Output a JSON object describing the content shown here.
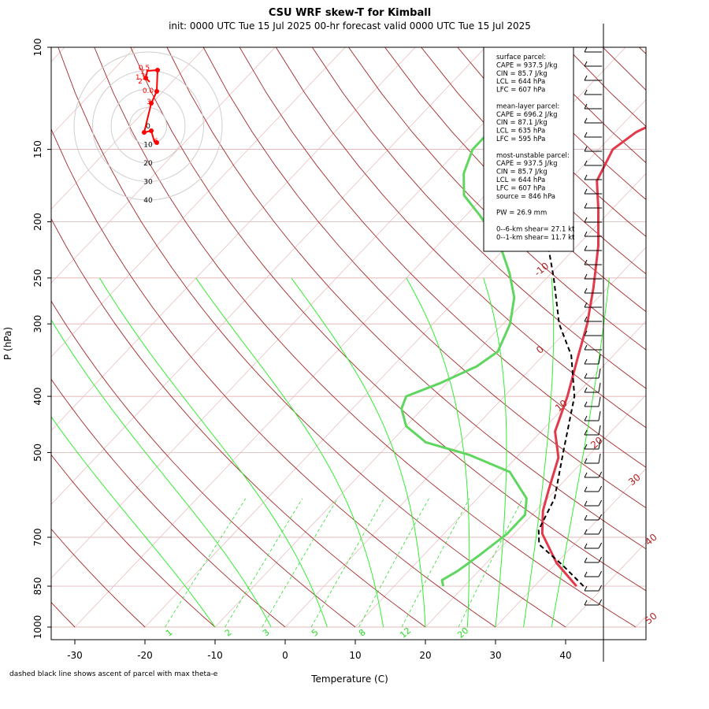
{
  "title": "CSU WRF skew-T for Kimball",
  "subtitle": "init: 0000 UTC Tue 15 Jul 2025     00-hr forecast valid 0000 UTC Tue 15 Jul 2025",
  "footnote": "dashed black line shows ascent of parcel with max theta-e",
  "colors": {
    "temperature": "#e23a4a",
    "dewpoint": "#5fd65f",
    "parcel": "#000000",
    "isotherm": "#b22222",
    "dry_adiabat": "#a52a2a",
    "moist_adiabat": "#33ee33",
    "mixing_ratio": "#33dd33",
    "hodograph": "#ff0000"
  },
  "chart_data": {
    "type": "line",
    "xlabel": "Temperature (C)",
    "ylabel": "P (hPa)",
    "x_ticks": [
      "-30",
      "-20",
      "-10",
      "0",
      "10",
      "20",
      "30",
      "40"
    ],
    "y_ticks": [
      "100",
      "150",
      "200",
      "250",
      "300",
      "400",
      "500",
      "700",
      "850",
      "1000"
    ],
    "isotherm_labels": [
      "-10",
      "0",
      "10",
      "20",
      "30",
      "40",
      "50"
    ],
    "mixing_ratio_labels": [
      "1",
      "2",
      "3",
      "5",
      "8",
      "12",
      "20"
    ],
    "series": [
      {
        "name": "Temperature",
        "points": [
          [
            36,
            850
          ],
          [
            30,
            775
          ],
          [
            24,
            690
          ],
          [
            21,
            630
          ],
          [
            19,
            580
          ],
          [
            16,
            510
          ],
          [
            12,
            460
          ],
          [
            9,
            400
          ],
          [
            5,
            340
          ],
          [
            2,
            300
          ],
          [
            -2,
            260
          ],
          [
            -7,
            220
          ],
          [
            -12,
            190
          ],
          [
            -16,
            170
          ],
          [
            -18,
            150
          ],
          [
            -17,
            140
          ],
          [
            -14,
            130
          ],
          [
            -8,
            120
          ],
          [
            0,
            110
          ],
          [
            3,
            107
          ]
        ]
      },
      {
        "name": "Dewpoint",
        "points": [
          [
            17,
            850
          ],
          [
            16,
            830
          ],
          [
            17,
            800
          ],
          [
            18,
            750
          ],
          [
            19,
            690
          ],
          [
            19,
            640
          ],
          [
            17,
            600
          ],
          [
            11,
            540
          ],
          [
            3,
            505
          ],
          [
            -5,
            480
          ],
          [
            -10,
            450
          ],
          [
            -13,
            420
          ],
          [
            -14,
            400
          ],
          [
            -11,
            380
          ],
          [
            -8,
            355
          ],
          [
            -7,
            335
          ],
          [
            -9,
            300
          ],
          [
            -12,
            270
          ],
          [
            -16,
            245
          ],
          [
            -21,
            220
          ],
          [
            -28,
            195
          ],
          [
            -33,
            180
          ],
          [
            -36,
            165
          ],
          [
            -38,
            150
          ],
          [
            -38,
            135
          ],
          [
            -39,
            120
          ],
          [
            -41,
            110
          ],
          [
            -42,
            105
          ]
        ]
      },
      {
        "name": "Parcel (max theta-e)",
        "points": [
          [
            37,
            850
          ],
          [
            31,
            780
          ],
          [
            25,
            720
          ],
          [
            23,
            680
          ],
          [
            21,
            600
          ],
          [
            16,
            500
          ],
          [
            10,
            400
          ],
          [
            4,
            340
          ],
          [
            -2,
            300
          ],
          [
            -9,
            250
          ],
          [
            -18,
            200
          ],
          [
            -27,
            170
          ],
          [
            -34,
            150
          ]
        ]
      }
    ],
    "hodograph": {
      "ring_labels": [
        "0",
        "10",
        "20",
        "30",
        "40"
      ],
      "height_labels": [
        "0.5",
        "1",
        "1.5",
        "2",
        "0.0",
        "3",
        "6"
      ]
    },
    "stats": [
      "surface parcel:",
      "CAPE = 937.5 J/kg",
      "CIN = 85.7 J/kg",
      "LCL = 644 hPa",
      "LFC = 607 hPa",
      "",
      "mean-layer parcel:",
      "CAPE = 696.2 J/kg",
      "CIN = 87.1 J/kg",
      "LCL = 635 hPa",
      "LFC = 595 hPa",
      "",
      "most-unstable parcel:",
      "CAPE = 937.5 J/kg",
      "CIN = 85.7 J/kg",
      "LCL = 644 hPa",
      "LFC = 607 hPa",
      "source = 846 hPa",
      "",
      "PW =  26.9 mm",
      "",
      "0--6-km shear= 27.1 kt",
      "0--1-km shear= 11.7 kt"
    ]
  }
}
